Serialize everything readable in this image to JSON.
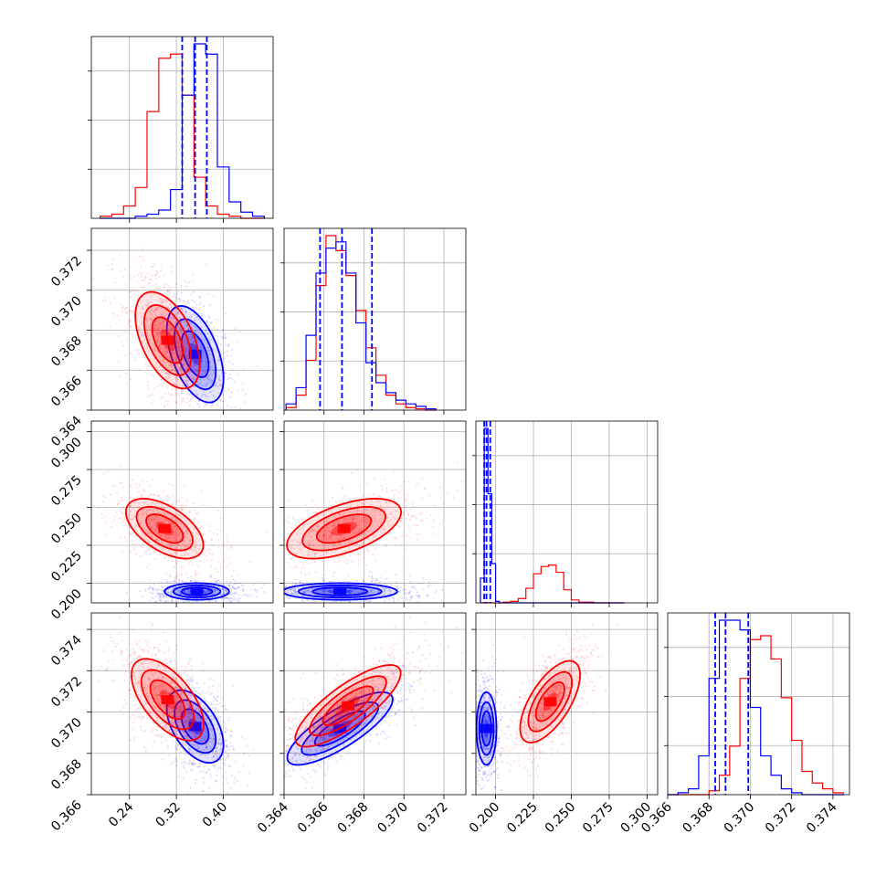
{
  "chart_data": {
    "type": "corner",
    "title": "",
    "grid": true,
    "parameters": 4,
    "series": [
      {
        "color": "#ff0000"
      },
      {
        "color": "#0000ff"
      }
    ],
    "axes": [
      {
        "lim": [
          0.175,
          0.485
        ],
        "ticks": [
          0.24,
          0.32,
          0.4
        ],
        "tick_labels": [
          "0.24",
          "0.32",
          "0.40"
        ]
      },
      {
        "lim": [
          0.364,
          0.3731
        ],
        "ticks": [
          0.364,
          0.366,
          0.368,
          0.37,
          0.372
        ],
        "tick_labels": [
          "0.364",
          "0.366",
          "0.368",
          "0.370",
          "0.372"
        ]
      },
      {
        "lim": [
          0.187,
          0.307
        ],
        "ticks": [
          0.2,
          0.225,
          0.25,
          0.275,
          0.3
        ],
        "tick_labels": [
          "0.200",
          "0.225",
          "0.250",
          "0.275",
          "0.300"
        ]
      },
      {
        "lim": [
          0.366,
          0.3748
        ],
        "ticks": [
          0.366,
          0.368,
          0.37,
          0.372,
          0.374
        ],
        "tick_labels": [
          "0.366",
          "0.368",
          "0.370",
          "0.372",
          "0.374"
        ]
      }
    ],
    "histograms": [
      {
        "param": 0,
        "red": {
          "bin_edges": [
            0.19,
            0.21,
            0.23,
            0.25,
            0.27,
            0.29,
            0.31,
            0.33,
            0.35,
            0.37,
            0.39,
            0.41,
            0.43,
            0.45,
            0.47
          ],
          "counts": [
            1,
            2,
            6,
            15,
            52,
            78,
            80,
            60,
            20,
            6,
            2,
            1,
            0,
            0
          ]
        },
        "blue": {
          "bin_edges": [
            0.19,
            0.21,
            0.23,
            0.25,
            0.27,
            0.29,
            0.31,
            0.33,
            0.35,
            0.37,
            0.39,
            0.41,
            0.43,
            0.45,
            0.47
          ],
          "counts": [
            0,
            0,
            0,
            1,
            2,
            4,
            14,
            60,
            85,
            80,
            25,
            8,
            3,
            1
          ]
        },
        "quantiles_blue": [
          0.33,
          0.352,
          0.372
        ]
      },
      {
        "param": 1,
        "red": {
          "bin_edges": [
            0.3641,
            0.3646,
            0.3651,
            0.3656,
            0.3661,
            0.3666,
            0.3671,
            0.3676,
            0.3681,
            0.3686,
            0.3691,
            0.3696,
            0.3701,
            0.3706,
            0.3711,
            0.3716
          ],
          "counts": [
            2,
            12,
            40,
            100,
            140,
            128,
            108,
            80,
            50,
            28,
            12,
            5,
            2,
            1,
            0
          ]
        },
        "blue": {
          "bin_edges": [
            0.3641,
            0.3646,
            0.3651,
            0.3656,
            0.3661,
            0.3666,
            0.3671,
            0.3676,
            0.3681,
            0.3686,
            0.3691,
            0.3696,
            0.3701,
            0.3706,
            0.3711,
            0.3716
          ],
          "counts": [
            5,
            18,
            60,
            110,
            130,
            135,
            110,
            70,
            38,
            22,
            14,
            8,
            5,
            3,
            1
          ]
        },
        "quantiles_blue": [
          0.3658,
          0.3669,
          0.3684
        ]
      },
      {
        "param": 2,
        "red": {
          "bin_edges": [
            0.19,
            0.1925,
            0.195,
            0.1975,
            0.2,
            0.2025,
            0.205,
            0.21,
            0.215,
            0.22,
            0.225,
            0.23,
            0.235,
            0.24,
            0.245,
            0.25,
            0.255,
            0.26,
            0.265,
            0.27,
            0.275,
            0.28,
            0.285
          ],
          "counts": [
            0,
            0,
            0,
            0,
            0,
            0,
            1,
            2,
            6,
            20,
            40,
            50,
            52,
            42,
            18,
            4,
            1,
            1,
            0,
            0,
            0,
            0
          ]
        },
        "blue": {
          "bin_edges": [
            0.19,
            0.1925,
            0.195,
            0.1975,
            0.2,
            0.2025,
            0.205,
            0.21,
            0.215,
            0.22,
            0.225,
            0.23,
            0.235,
            0.24,
            0.245,
            0.25,
            0.255,
            0.26,
            0.265,
            0.27,
            0.275,
            0.28,
            0.285
          ],
          "counts": [
            34,
            240,
            150,
            54,
            2,
            0,
            0,
            0,
            0,
            0,
            0,
            0,
            0,
            0,
            0,
            0,
            0,
            0,
            0,
            0,
            0,
            0
          ]
        },
        "quantiles_blue": [
          0.1925,
          0.194,
          0.1965
        ]
      },
      {
        "param": 3,
        "red": {
          "bin_edges": [
            0.366,
            0.3665,
            0.367,
            0.3675,
            0.368,
            0.3685,
            0.369,
            0.3695,
            0.37,
            0.3705,
            0.371,
            0.3715,
            0.372,
            0.3725,
            0.373,
            0.3735,
            0.374,
            0.3745
          ],
          "counts": [
            0,
            0,
            0,
            0,
            2,
            10,
            25,
            60,
            80,
            82,
            70,
            50,
            28,
            12,
            6,
            3,
            1
          ]
        },
        "blue": {
          "bin_edges": [
            0.366,
            0.3665,
            0.367,
            0.3675,
            0.368,
            0.3685,
            0.369,
            0.3695,
            0.37,
            0.3705,
            0.371,
            0.3715,
            0.372,
            0.3725,
            0.373,
            0.3735,
            0.374,
            0.3745
          ],
          "counts": [
            0,
            1,
            3,
            20,
            60,
            90,
            90,
            85,
            45,
            20,
            10,
            3,
            1,
            0,
            0,
            0,
            0
          ]
        },
        "quantiles_blue": [
          0.3683,
          0.3688,
          0.3699
        ]
      }
    ],
    "density_2d": [
      {
        "row": 1,
        "col": 0,
        "red": {
          "center": [
            0.305,
            0.3675
          ],
          "sigma": [
            0.025,
            0.0011
          ],
          "corr": -0.5
        },
        "blue": {
          "center": [
            0.352,
            0.3668
          ],
          "sigma": [
            0.022,
            0.0011
          ],
          "corr": -0.5
        }
      },
      {
        "row": 2,
        "col": 0,
        "red": {
          "center": [
            0.3,
            0.236
          ],
          "sigma": [
            0.03,
            0.009
          ],
          "corr": -0.55
        },
        "blue": {
          "center": [
            0.355,
            0.1945
          ],
          "sigma": [
            0.025,
            0.0025
          ],
          "corr": 0.0
        }
      },
      {
        "row": 3,
        "col": 0,
        "red": {
          "center": [
            0.305,
            0.3706
          ],
          "sigma": [
            0.028,
            0.0009
          ],
          "corr": -0.6
        },
        "blue": {
          "center": [
            0.352,
            0.3693
          ],
          "sigma": [
            0.022,
            0.0008
          ],
          "corr": -0.5
        }
      },
      {
        "row": 2,
        "col": 1,
        "red": {
          "center": [
            0.367,
            0.236
          ],
          "sigma": [
            0.0013,
            0.009
          ],
          "corr": 0.55
        },
        "blue": {
          "center": [
            0.3668,
            0.1945
          ],
          "sigma": [
            0.0013,
            0.0025
          ],
          "corr": 0.0
        }
      },
      {
        "row": 3,
        "col": 1,
        "red": {
          "center": [
            0.3672,
            0.3703
          ],
          "sigma": [
            0.0012,
            0.0009
          ],
          "corr": 0.8
        },
        "blue": {
          "center": [
            0.3668,
            0.3692
          ],
          "sigma": [
            0.0012,
            0.0008
          ],
          "corr": 0.8
        }
      },
      {
        "row": 3,
        "col": 2,
        "red": {
          "center": [
            0.236,
            0.3705
          ],
          "sigma": [
            0.009,
            0.0009
          ],
          "corr": 0.65
        },
        "blue": {
          "center": [
            0.194,
            0.3692
          ],
          "sigma": [
            0.003,
            0.0008
          ],
          "corr": 0.0
        }
      }
    ]
  }
}
